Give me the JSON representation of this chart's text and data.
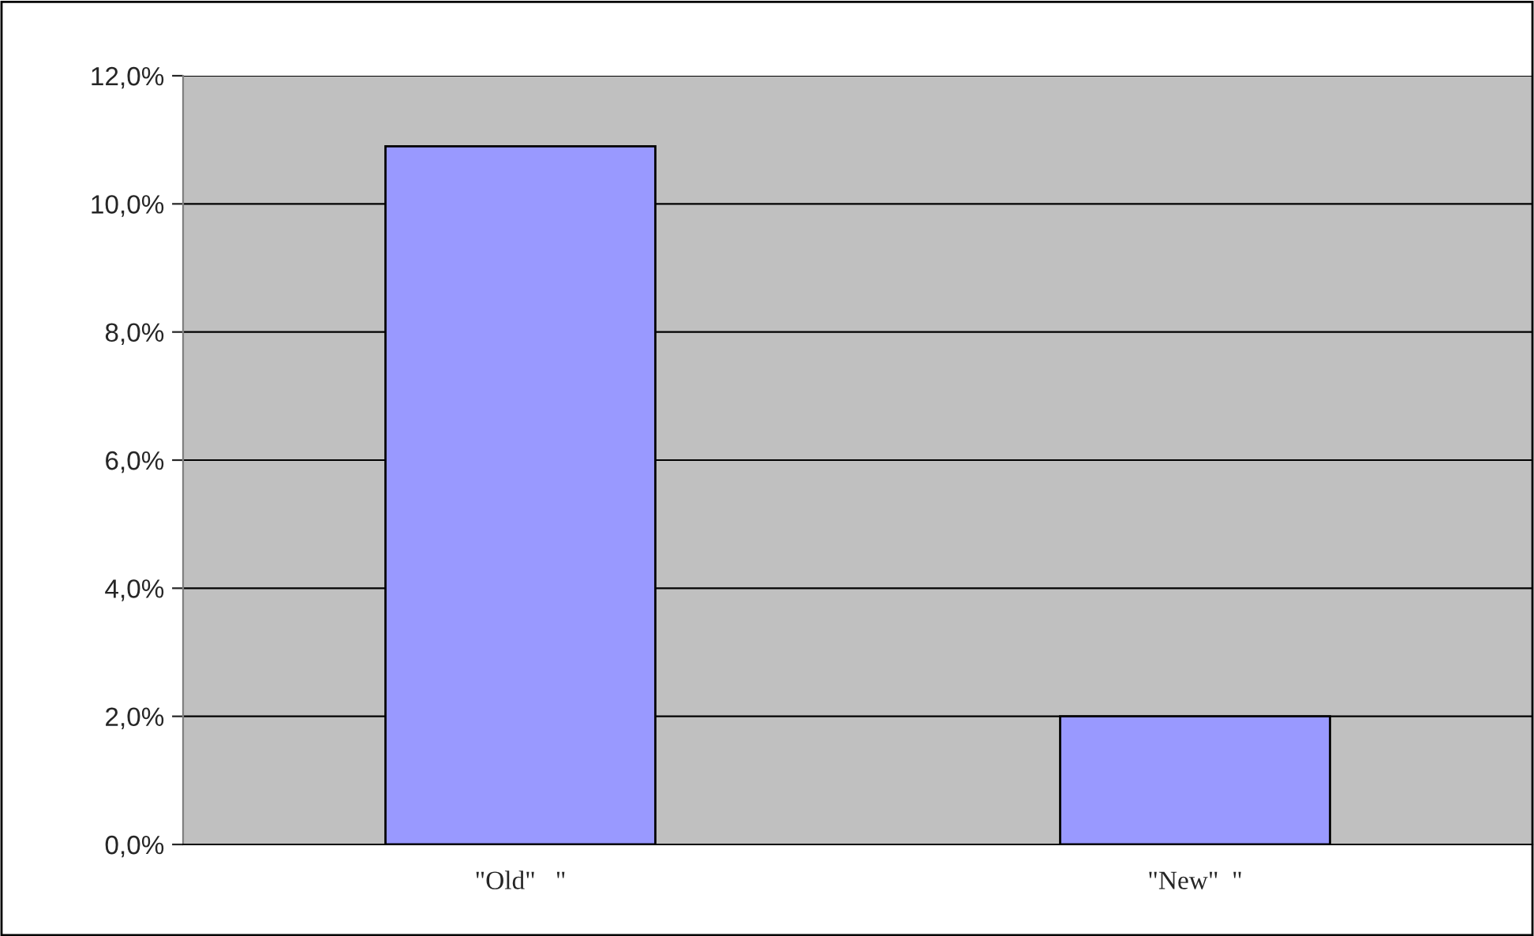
{
  "chart_data": {
    "type": "bar",
    "categories": [
      "\"Old\"   \"",
      "\"New\"  \""
    ],
    "values": [
      10.9,
      2.0
    ],
    "color": "#9999ff",
    "ylim": [
      0,
      12
    ],
    "yticks": [
      {
        "value": 0,
        "label": "0,0%"
      },
      {
        "value": 2,
        "label": "2,0%"
      },
      {
        "value": 4,
        "label": "4,0%"
      },
      {
        "value": 6,
        "label": "6,0%"
      },
      {
        "value": 8,
        "label": "8,0%"
      },
      {
        "value": 10,
        "label": "10,0%"
      },
      {
        "value": 12,
        "label": "12,0%"
      }
    ],
    "grid": "y",
    "legend": false
  }
}
